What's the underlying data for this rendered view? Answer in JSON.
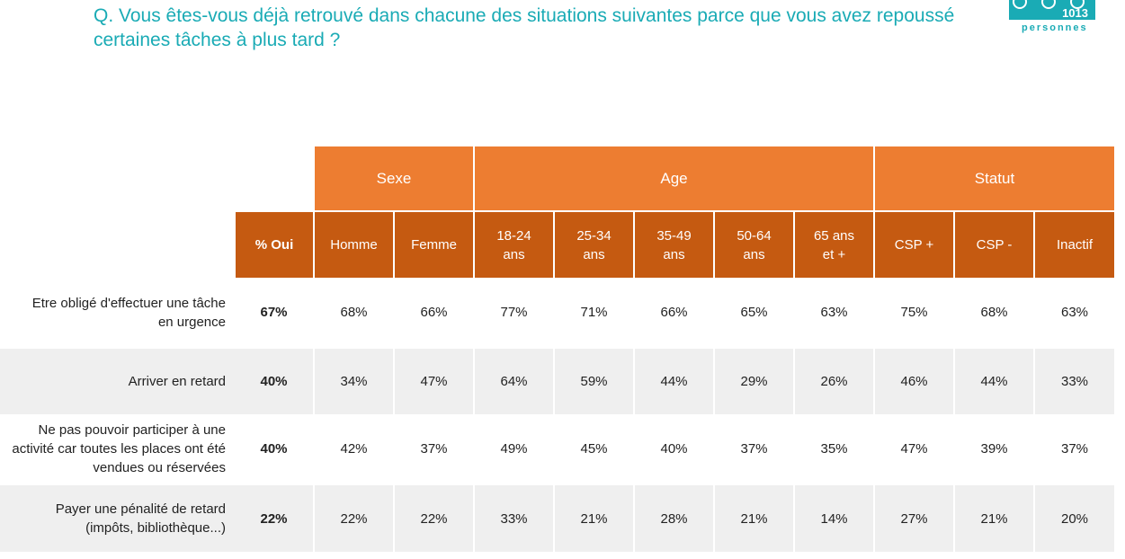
{
  "title": "Q. Vous êtes-vous déjà retrouvé dans chacune des situations suivantes parce que vous avez repoussé certaines tâches à plus tard ?",
  "badge": {
    "count": "1013",
    "unit": "personnes",
    "color": "#1aabb5"
  },
  "colors": {
    "group_header": "#ed7d31",
    "sub_header": "#c55a11",
    "title": "#1aabb5",
    "stripe": "#efefef"
  },
  "groups": [
    "Sexe",
    "Age",
    "Statut"
  ],
  "columns": [
    "% Oui",
    "Homme",
    "Femme",
    "18-24\nans",
    "25-34\nans",
    "35-49\nans",
    "50-64\nans",
    "65 ans\net +",
    "CSP +",
    "CSP -",
    "Inactif"
  ],
  "rows": [
    {
      "label": "Etre obligé d'effectuer une tâche en urgence",
      "values": [
        "67%",
        "68%",
        "66%",
        "77%",
        "71%",
        "66%",
        "65%",
        "63%",
        "75%",
        "68%",
        "63%"
      ]
    },
    {
      "label": "Arriver en retard",
      "values": [
        "40%",
        "34%",
        "47%",
        "64%",
        "59%",
        "44%",
        "29%",
        "26%",
        "46%",
        "44%",
        "33%"
      ]
    },
    {
      "label": "Ne pas pouvoir participer à une activité car toutes les places ont été vendues ou réservées",
      "values": [
        "40%",
        "42%",
        "37%",
        "49%",
        "45%",
        "40%",
        "37%",
        "35%",
        "47%",
        "39%",
        "37%"
      ]
    },
    {
      "label": "Payer une pénalité de retard (impôts, bibliothèque...)",
      "values": [
        "22%",
        "22%",
        "22%",
        "33%",
        "21%",
        "28%",
        "21%",
        "14%",
        "27%",
        "21%",
        "20%"
      ]
    }
  ]
}
